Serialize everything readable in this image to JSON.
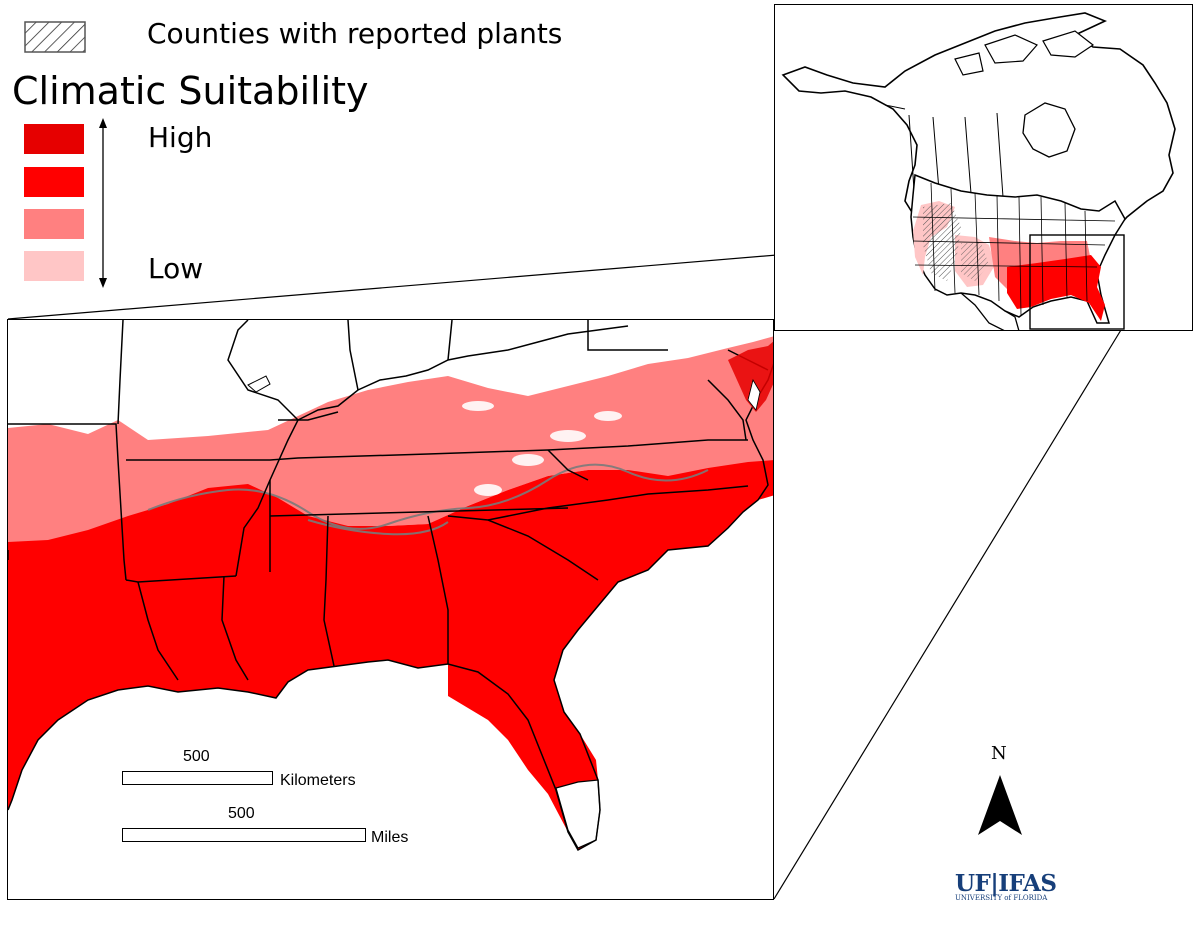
{
  "legend": {
    "counties_label": "Counties with reported plants",
    "title": "Climatic Suitability",
    "high_label": "High",
    "low_label": "Low",
    "classes": [
      {
        "level": "very-high",
        "color": "#e60000"
      },
      {
        "level": "high",
        "color": "#ff0000"
      },
      {
        "level": "moderate",
        "color": "#ff8080"
      },
      {
        "level": "low",
        "color": "#ffc6c6"
      }
    ]
  },
  "scale": {
    "km_value": "500",
    "km_unit": "Kilometers",
    "mi_value": "500",
    "mi_unit": "Miles"
  },
  "north_arrow": {
    "label": "N"
  },
  "logo": {
    "main": "UF|IFAS",
    "sub": "UNIVERSITY of FLORIDA"
  },
  "colors": {
    "very_high": "#e60000",
    "high": "#ff0000",
    "moderate": "#ff8080",
    "low": "#ffc6c6",
    "county_hatch": "#777777",
    "border": "#000000",
    "brand": "#173f7a"
  }
}
